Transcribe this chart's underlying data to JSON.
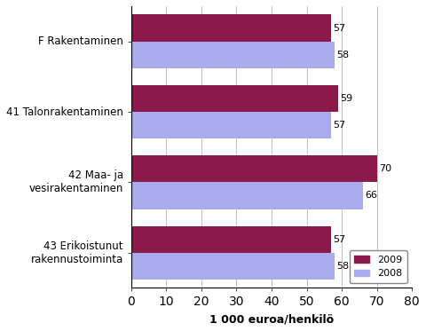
{
  "categories": [
    "F Rakentaminen",
    "41 Talonrakentaminen",
    "42 Maa- ja\nvesirakentaminen",
    "43 Erikoistunut\nrakennustoiminta"
  ],
  "values_2009": [
    57,
    59,
    70,
    57
  ],
  "values_2008": [
    58,
    57,
    66,
    58
  ],
  "color_2009": "#8B1A4A",
  "color_2008": "#AAAAEE",
  "xlabel": "1 000 euroa/henkilö",
  "xlim": [
    0,
    80
  ],
  "xticks": [
    0,
    10,
    20,
    30,
    40,
    50,
    60,
    70,
    80
  ],
  "legend_labels": [
    "2009",
    "2008"
  ],
  "bar_height": 0.38,
  "label_fontsize": 8,
  "axis_fontsize": 8.5,
  "xlabel_fontsize": 9
}
